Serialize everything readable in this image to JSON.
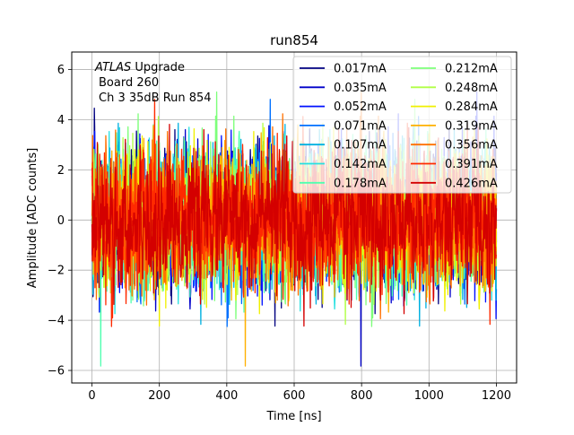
{
  "chart_data": {
    "type": "line",
    "title": "run854",
    "xlabel": "Time [ns]",
    "ylabel": "Amplitude [ADC counts]",
    "xlim": [
      -60,
      1260
    ],
    "ylim": [
      -6.5,
      6.7
    ],
    "xticks": [
      0,
      200,
      400,
      600,
      800,
      1000,
      1200
    ],
    "yticks": [
      -6,
      -4,
      -2,
      0,
      2,
      4,
      6
    ],
    "xtick_labels": [
      "0",
      "200",
      "400",
      "600",
      "800",
      "1000",
      "1200"
    ],
    "ytick_labels": [
      "−6",
      "−4",
      "−2",
      "0",
      "2",
      "4",
      "6"
    ],
    "grid": true,
    "legend_position": "top-right",
    "legend_columns": 2,
    "annotation": {
      "line1_italic": "ATLAS",
      "line1_rest": " Upgrade",
      "line2": "Board 260",
      "line3": "Ch 3 35dB  Run 854"
    },
    "sample_period_ns": 1,
    "sample_count": 1200,
    "series": [
      {
        "name": "0.017mA",
        "color": "#000080",
        "noise_sigma": 1.2
      },
      {
        "name": "0.035mA",
        "color": "#0000c9",
        "noise_sigma": 1.2
      },
      {
        "name": "0.052mA",
        "color": "#0010ff",
        "noise_sigma": 1.2
      },
      {
        "name": "0.071mA",
        "color": "#0070ff",
        "noise_sigma": 1.2
      },
      {
        "name": "0.107mA",
        "color": "#00b0e0",
        "noise_sigma": 1.2
      },
      {
        "name": "0.142mA",
        "color": "#26e0e0",
        "noise_sigma": 1.2
      },
      {
        "name": "0.178mA",
        "color": "#50ffb0",
        "noise_sigma": 1.2
      },
      {
        "name": "0.212mA",
        "color": "#7dff7a",
        "noise_sigma": 1.2
      },
      {
        "name": "0.248mA",
        "color": "#b0ff46",
        "noise_sigma": 1.2
      },
      {
        "name": "0.284mA",
        "color": "#f0f000",
        "noise_sigma": 1.2
      },
      {
        "name": "0.319mA",
        "color": "#ffb000",
        "noise_sigma": 1.2
      },
      {
        "name": "0.356mA",
        "color": "#ff7000",
        "noise_sigma": 1.2
      },
      {
        "name": "0.391mA",
        "color": "#ff2a00",
        "noise_sigma": 1.2
      },
      {
        "name": "0.426mA",
        "color": "#d40000",
        "noise_sigma": 1.2
      }
    ]
  }
}
